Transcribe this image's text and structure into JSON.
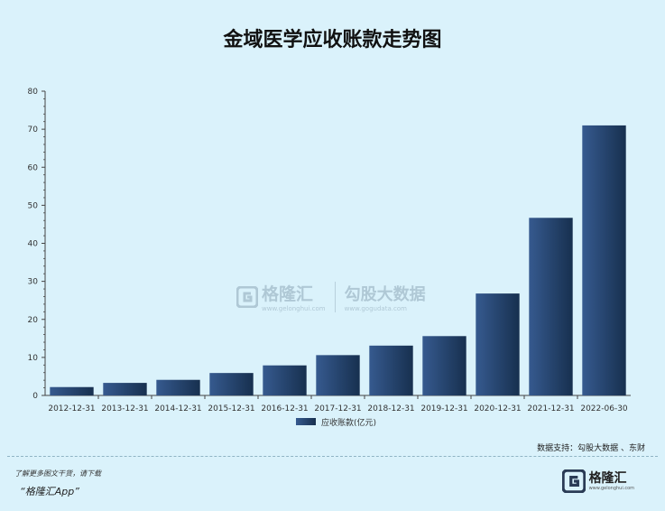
{
  "title": "金域医学应收账款走势图",
  "chart_data": {
    "type": "bar",
    "categories": [
      "2012-12-31",
      "2013-12-31",
      "2014-12-31",
      "2015-12-31",
      "2016-12-31",
      "2017-12-31",
      "2018-12-31",
      "2019-12-31",
      "2020-12-31",
      "2021-12-31",
      "2022-06-30"
    ],
    "series": [
      {
        "name": "应收账款(亿元)",
        "values": [
          2.2,
          3.3,
          4.1,
          5.9,
          7.9,
          10.6,
          13.1,
          15.6,
          26.8,
          46.7,
          71.0
        ]
      }
    ],
    "ylim": [
      0,
      80
    ],
    "yticks": [
      0,
      10,
      20,
      30,
      40,
      50,
      60,
      70,
      80
    ],
    "legend_position": "bottom-center",
    "grid": false,
    "colors": {
      "bar_light": "#365a8f",
      "bar_dark": "#17304f",
      "axis": "#444444"
    }
  },
  "source": "数据支持：勾股大数据 、东财",
  "watermark": {
    "name": "格隆汇",
    "url": "www.gelonghui.com",
    "partner": "勾股大数据",
    "partner_url": "www.gogudata.com"
  },
  "footer": {
    "line1": "了解更多图文干货，请下载",
    "app": "“格隆汇App”"
  },
  "brand": {
    "name": "格隆汇",
    "url": "www.gelonghui.com"
  }
}
